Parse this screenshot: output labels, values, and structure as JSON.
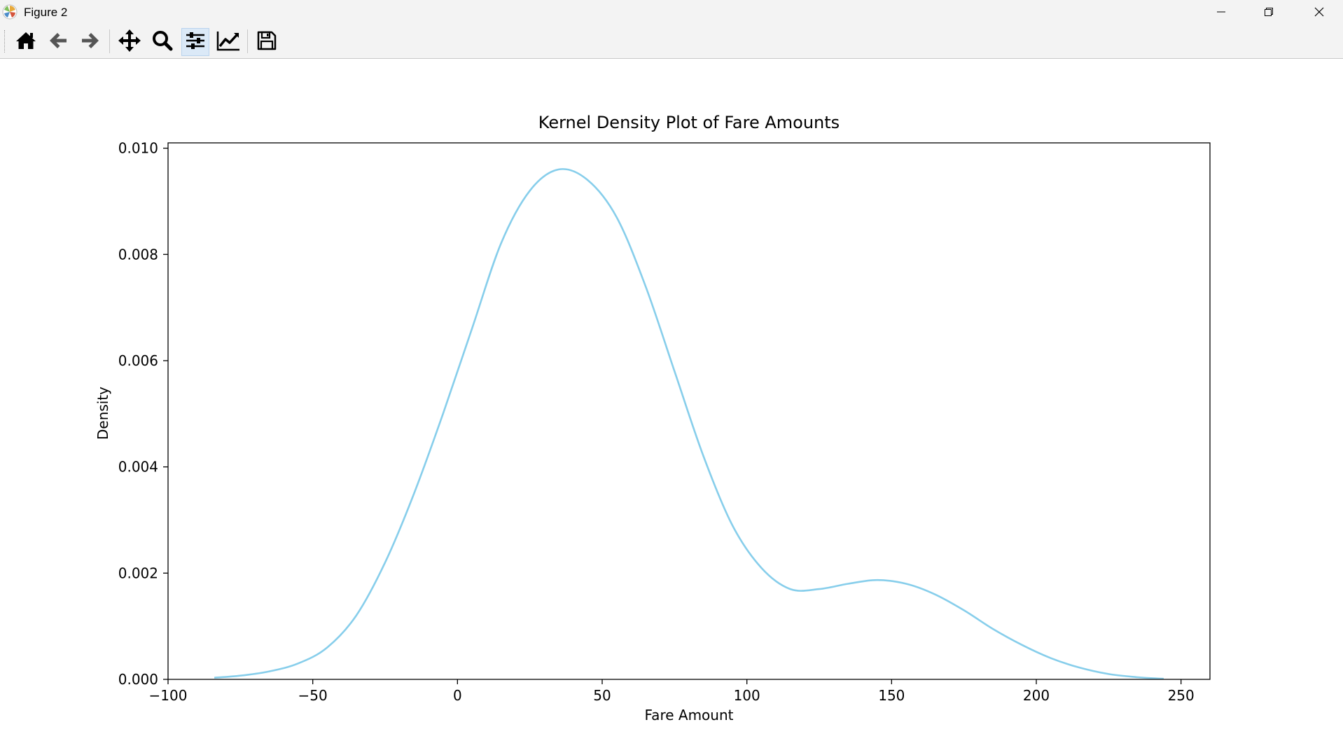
{
  "window": {
    "title": "Figure 2",
    "icons": {
      "app": "matplotlib-icon",
      "minimize": "minimize-icon",
      "restore": "restore-icon",
      "close": "close-icon"
    }
  },
  "toolbar": {
    "buttons": [
      {
        "name": "home",
        "icon": "home-icon"
      },
      {
        "name": "back",
        "icon": "arrow-left-icon"
      },
      {
        "name": "forward",
        "icon": "arrow-right-icon"
      },
      {
        "name": "pan",
        "icon": "move-icon"
      },
      {
        "name": "zoom",
        "icon": "magnifier-icon"
      },
      {
        "name": "subplots",
        "icon": "sliders-icon",
        "active": true
      },
      {
        "name": "edit-axis",
        "icon": "line-chart-icon"
      },
      {
        "name": "save",
        "icon": "floppy-disk-icon"
      }
    ]
  },
  "chart_data": {
    "type": "line",
    "title": "Kernel Density Plot of Fare Amounts",
    "xlabel": "Fare Amount",
    "ylabel": "Density",
    "xlim": [
      -100,
      260
    ],
    "ylim": [
      0,
      0.0101
    ],
    "xticks": [
      -100,
      -50,
      0,
      50,
      100,
      150,
      200,
      250
    ],
    "xtick_labels": [
      "−100",
      "−50",
      "0",
      "50",
      "100",
      "150",
      "200",
      "250"
    ],
    "yticks": [
      0,
      0.002,
      0.004,
      0.006,
      0.008,
      0.01
    ],
    "ytick_labels": [
      "0.000",
      "0.002",
      "0.004",
      "0.006",
      "0.008",
      "0.010"
    ],
    "grid": false,
    "series": [
      {
        "color": "#87ceeb",
        "x": [
          -84,
          -75,
          -65,
          -55,
          -45,
          -35,
          -25,
          -15,
          -5,
          5,
          15,
          25,
          35,
          45,
          55,
          65,
          75,
          85,
          95,
          105,
          115,
          125,
          135,
          145,
          155,
          165,
          175,
          185,
          195,
          205,
          215,
          225,
          235,
          244
        ],
        "y": [
          3e-05,
          7e-05,
          0.00015,
          0.0003,
          0.0006,
          0.0012,
          0.0022,
          0.0035,
          0.005,
          0.0066,
          0.0082,
          0.0092,
          0.0096,
          0.0094,
          0.0087,
          0.0074,
          0.0058,
          0.0042,
          0.0029,
          0.0021,
          0.0017,
          0.0017,
          0.0018,
          0.00187,
          0.0018,
          0.0016,
          0.0013,
          0.00095,
          0.00065,
          0.0004,
          0.00022,
          0.0001,
          4e-05,
          1e-05
        ]
      }
    ]
  }
}
